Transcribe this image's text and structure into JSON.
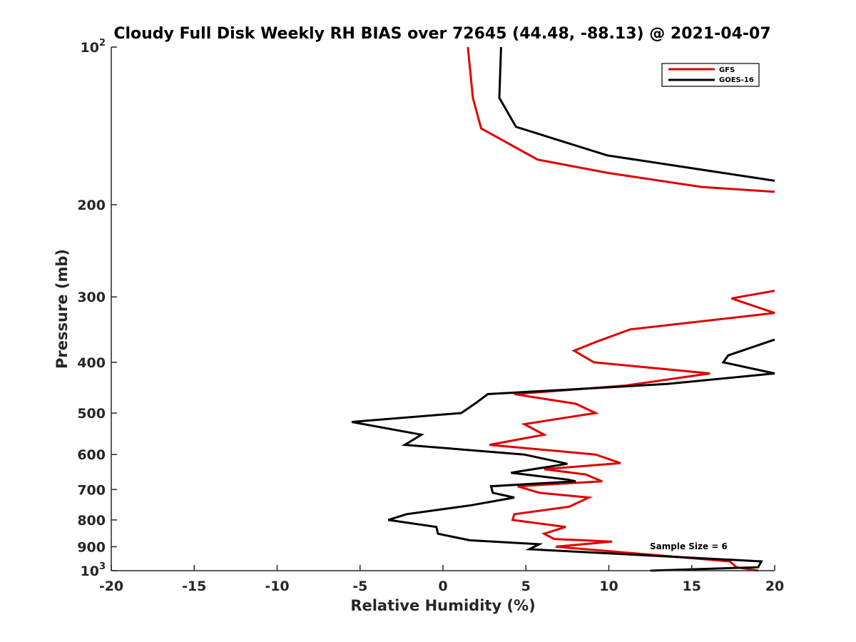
{
  "chart_data": {
    "type": "line",
    "title": "Cloudy Full Disk Weekly RH BIAS over 72645 (44.48, -88.13) @ 2021-04-07",
    "xlabel": "Relative Humidity (%)",
    "ylabel": "Pressure (mb)",
    "xlim": [
      -20,
      20
    ],
    "ylim": [
      100,
      1000
    ],
    "yscale": "log",
    "y_reversed": true,
    "grid": false,
    "legend_position": "top-right",
    "x_ticks": [
      -20,
      -15,
      -10,
      -5,
      0,
      5,
      10,
      15,
      20
    ],
    "y_ticks": [
      100,
      200,
      300,
      400,
      500,
      600,
      700,
      800,
      900,
      1000
    ],
    "x_tick_labels": [
      "-20",
      "-15",
      "-10",
      "-5",
      "0",
      "5",
      "10",
      "15",
      "20"
    ],
    "y_tick_labels": [
      {
        "base": "10",
        "exp": "2"
      },
      {
        "base": "200",
        "exp": ""
      },
      {
        "base": "300",
        "exp": ""
      },
      {
        "base": "400",
        "exp": ""
      },
      {
        "base": "500",
        "exp": ""
      },
      {
        "base": "600",
        "exp": ""
      },
      {
        "base": "700",
        "exp": ""
      },
      {
        "base": "800",
        "exp": ""
      },
      {
        "base": "900",
        "exp": ""
      },
      {
        "base": "10",
        "exp": "3"
      }
    ],
    "annotation": "Sample Size = 6",
    "series": [
      {
        "name": "GFS",
        "color": "#e00000",
        "points": [
          [
            1.5,
            100
          ],
          [
            1.8,
            125
          ],
          [
            2.3,
            143
          ],
          [
            5.7,
            164
          ],
          [
            10,
            174
          ],
          [
            15.6,
            185
          ],
          [
            20,
            189
          ],
          [
            null,
            null
          ],
          [
            20,
            292
          ],
          [
            17.4,
            302
          ],
          [
            20,
            322
          ],
          [
            11.3,
            346
          ],
          [
            9.3,
            365
          ],
          [
            7.9,
            380
          ],
          [
            9.1,
            400
          ],
          [
            16.1,
            420
          ],
          [
            11,
            443
          ],
          [
            4.3,
            460
          ],
          [
            8,
            480
          ],
          [
            9.2,
            500
          ],
          [
            4.9,
            525
          ],
          [
            6.1,
            550
          ],
          [
            2.8,
            575
          ],
          [
            9.2,
            600
          ],
          [
            10.7,
            623
          ],
          [
            6.1,
            640
          ],
          [
            8.6,
            655
          ],
          [
            9.6,
            675
          ],
          [
            4.5,
            690
          ],
          [
            5.8,
            710
          ],
          [
            8.8,
            725
          ],
          [
            7.6,
            755
          ],
          [
            4.3,
            780
          ],
          [
            4.2,
            800
          ],
          [
            7.4,
            825
          ],
          [
            6.1,
            850
          ],
          [
            6.7,
            870
          ],
          [
            10.2,
            880
          ],
          [
            6.8,
            900
          ],
          [
            17.3,
            960
          ],
          [
            17.7,
            985
          ],
          [
            19,
            1000
          ]
        ]
      },
      {
        "name": "GOES-16",
        "color": "#000000",
        "points": [
          [
            3.5,
            100
          ],
          [
            3.4,
            125
          ],
          [
            4.4,
            142
          ],
          [
            9.9,
            161
          ],
          [
            20,
            180
          ],
          [
            null,
            null
          ],
          [
            20,
            362
          ],
          [
            17.2,
            388
          ],
          [
            16.9,
            400
          ],
          [
            20,
            420
          ],
          [
            13.5,
            440
          ],
          [
            2.7,
            460
          ],
          [
            2,
            478
          ],
          [
            1.1,
            500
          ],
          [
            -5.5,
            520
          ],
          [
            -1.3,
            550
          ],
          [
            -2.3,
            575
          ],
          [
            4.9,
            600
          ],
          [
            7.5,
            625
          ],
          [
            4.1,
            650
          ],
          [
            7.5,
            670
          ],
          [
            8,
            675
          ],
          [
            2.9,
            690
          ],
          [
            3,
            710
          ],
          [
            4.3,
            725
          ],
          [
            1.7,
            750
          ],
          [
            -2.2,
            780
          ],
          [
            -3.3,
            800
          ],
          [
            -0.4,
            825
          ],
          [
            -0.3,
            850
          ],
          [
            1.6,
            875
          ],
          [
            5.8,
            890
          ],
          [
            5.2,
            910
          ],
          [
            19.2,
            960
          ],
          [
            19,
            985
          ],
          [
            12.5,
            1000
          ]
        ]
      }
    ]
  }
}
